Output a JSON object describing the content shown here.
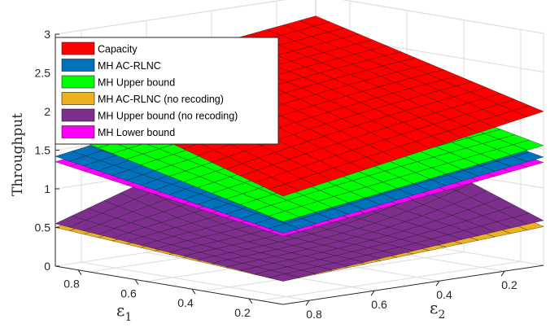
{
  "chart_data": {
    "type": "surface3d",
    "title": "",
    "zlabel": "Throughput",
    "xlabel": {
      "symbol": "ε",
      "subscript": "1"
    },
    "ylabel": {
      "symbol": "ε",
      "subscript": "2"
    },
    "zlim": [
      0,
      3
    ],
    "z_ticks": [
      "0",
      "0.5",
      "1",
      "1.5",
      "2",
      "2.5",
      "3"
    ],
    "eps1_ticks": [
      "0.8",
      "0.6",
      "0.4",
      "0.2"
    ],
    "eps2_ticks": [
      "0.8",
      "0.6",
      "0.4",
      "0.2"
    ],
    "grid": true,
    "legend_position": "top-left",
    "series": [
      {
        "name": "Capacity",
        "color": "#ff0000",
        "corners": {
          "e1_high_e2_high": 1.4,
          "e1_low_e2_high": 2.3,
          "e1_low_e2_low": 2.73,
          "e1_high_e2_low": 1.99
        }
      },
      {
        "name": "MH AC-RLNC",
        "color": "#0072bd",
        "corners": {
          "e1_high_e2_high": 0.92,
          "e1_low_e2_high": 1.42,
          "e1_low_e2_low": 1.97,
          "e1_high_e2_low": 1.4
        }
      },
      {
        "name": "MH Upper bound",
        "color": "#00ff00",
        "corners": {
          "e1_high_e2_high": 1.07,
          "e1_low_e2_high": 1.75,
          "e1_low_e2_low": 2.17,
          "e1_high_e2_low": 1.55
        }
      },
      {
        "name": "MH AC-RLNC (no recoding)",
        "color": "#edb120",
        "corners": {
          "e1_high_e2_high": 0.3,
          "e1_low_e2_high": 0.5,
          "e1_low_e2_low": 1.37,
          "e1_high_e2_low": 0.5
        }
      },
      {
        "name": "MH Upper bound (no recoding)",
        "color": "#7e2f8e",
        "corners": {
          "e1_high_e2_high": 0.3,
          "e1_low_e2_high": 0.55,
          "e1_low_e2_low": 1.63,
          "e1_high_e2_low": 0.58
        }
      },
      {
        "name": "MH Lower bound",
        "color": "#ff00ff",
        "corners": {
          "e1_high_e2_high": 0.88,
          "e1_low_e2_high": 1.35,
          "e1_low_e2_low": 1.87,
          "e1_high_e2_low": 1.33
        }
      }
    ]
  }
}
